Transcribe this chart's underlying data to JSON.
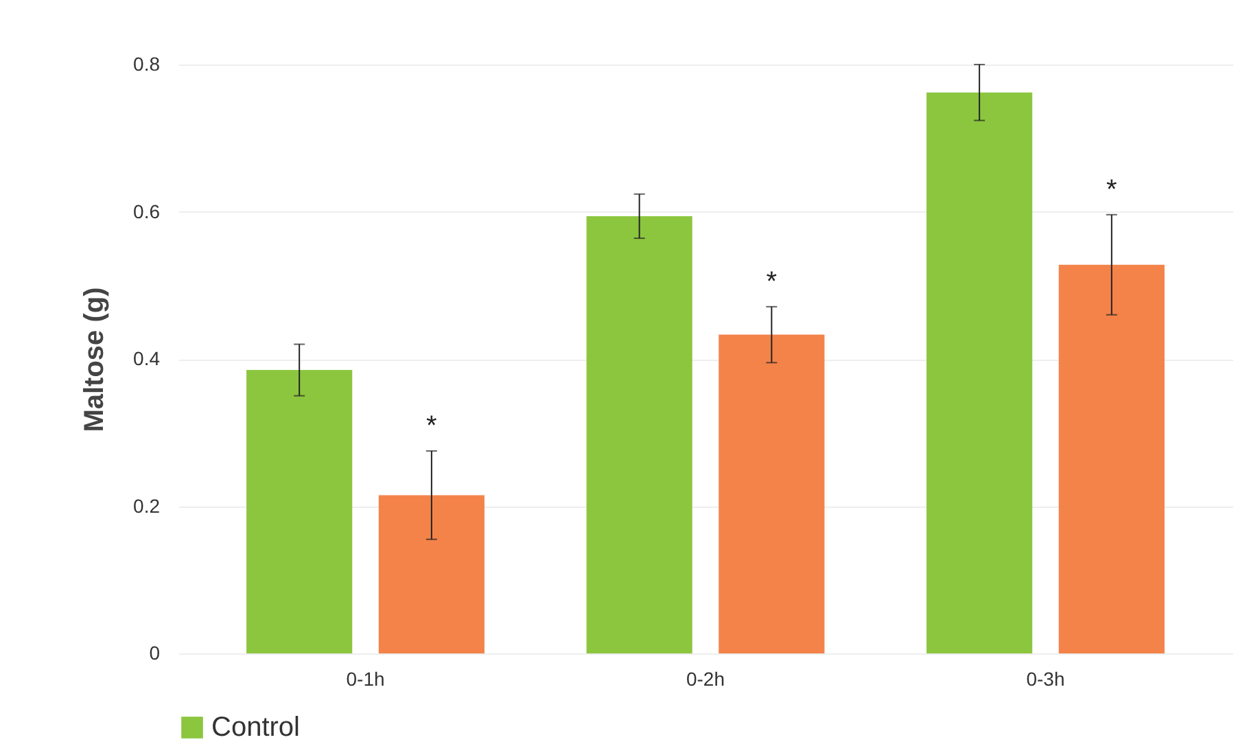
{
  "chart_data": {
    "type": "bar",
    "ylabel": "Maltose (g)",
    "categories": [
      "0-1h",
      "0-2h",
      "0-3h"
    ],
    "series": [
      {
        "name": "Control",
        "color": "#8cc63f",
        "values": [
          0.385,
          0.594,
          0.762
        ],
        "errors": [
          0.035,
          0.03,
          0.038
        ]
      },
      {
        "color": "#f4834a",
        "values": [
          0.215,
          0.433,
          0.528
        ],
        "errors": [
          0.06,
          0.038,
          0.068
        ]
      }
    ],
    "ylim": [
      0,
      0.8
    ],
    "yticks": [
      {
        "value": 0,
        "label": "0"
      },
      0.2,
      0.4,
      0.6,
      0.8
    ],
    "grid": "y",
    "legend": "bottom",
    "annotations": [
      "*",
      "*",
      "*"
    ]
  }
}
